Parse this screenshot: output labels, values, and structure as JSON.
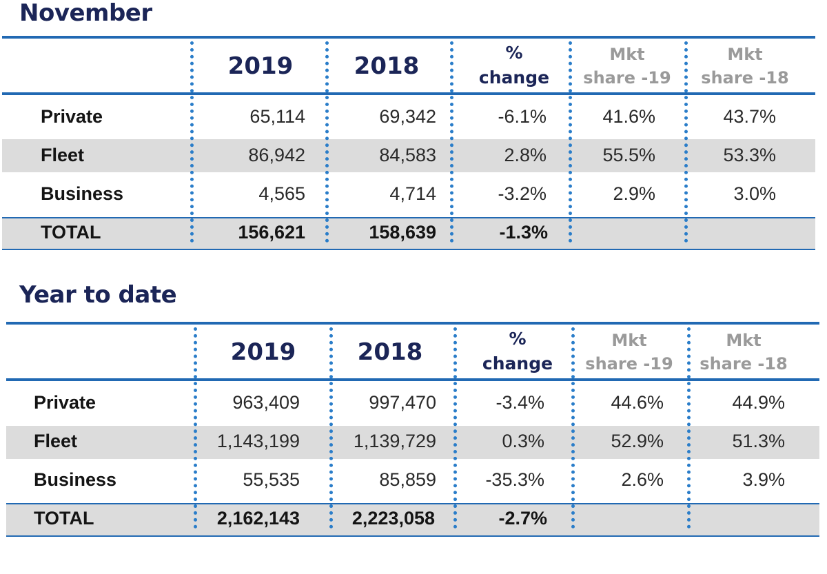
{
  "tables": [
    {
      "title": "November",
      "headers": {
        "year1": "2019",
        "year2": "2018",
        "pct_line1": "%",
        "pct_line2": "change",
        "share1_line1": "Mkt",
        "share1_line2": "share -19",
        "share2_line1": "Mkt",
        "share2_line2": "share -18"
      },
      "rows": [
        {
          "label": "Private",
          "v2019": "65,114",
          "v2018": "69,342",
          "change": "-6.1%",
          "share19": "41.6%",
          "share18": "43.7%"
        },
        {
          "label": "Fleet",
          "v2019": "86,942",
          "v2018": "84,583",
          "change": "2.8%",
          "share19": "55.5%",
          "share18": "53.3%"
        },
        {
          "label": "Business",
          "v2019": "4,565",
          "v2018": "4,714",
          "change": "-3.2%",
          "share19": "2.9%",
          "share18": "3.0%"
        }
      ],
      "total": {
        "label": "TOTAL",
        "v2019": "156,621",
        "v2018": "158,639",
        "change": "-1.3%"
      }
    },
    {
      "title": "Year to date",
      "headers": {
        "year1": "2019",
        "year2": "2018",
        "pct_line1": "%",
        "pct_line2": "change",
        "share1_line1": "Mkt",
        "share1_line2": "share -19",
        "share2_line1": "Mkt",
        "share2_line2": "share -18"
      },
      "rows": [
        {
          "label": "Private",
          "v2019": "963,409",
          "v2018": "997,470",
          "change": "-3.4%",
          "share19": "44.6%",
          "share18": "44.9%"
        },
        {
          "label": "Fleet",
          "v2019": "1,143,199",
          "v2018": "1,139,729",
          "change": "0.3%",
          "share19": "52.9%",
          "share18": "51.3%"
        },
        {
          "label": "Business",
          "v2019": "55,535",
          "v2018": "85,859",
          "change": "-35.3%",
          "share19": "2.6%",
          "share18": "3.9%"
        }
      ],
      "total": {
        "label": "TOTAL",
        "v2019": "2,162,143",
        "v2018": "2,223,058",
        "change": "-2.7%"
      }
    }
  ],
  "colors": {
    "title": "#1b2557",
    "rule": "#2169b3",
    "dotted_divider": "#2a7dc9",
    "band": "#dcdcdc",
    "muted_header": "#9a9a9a"
  }
}
